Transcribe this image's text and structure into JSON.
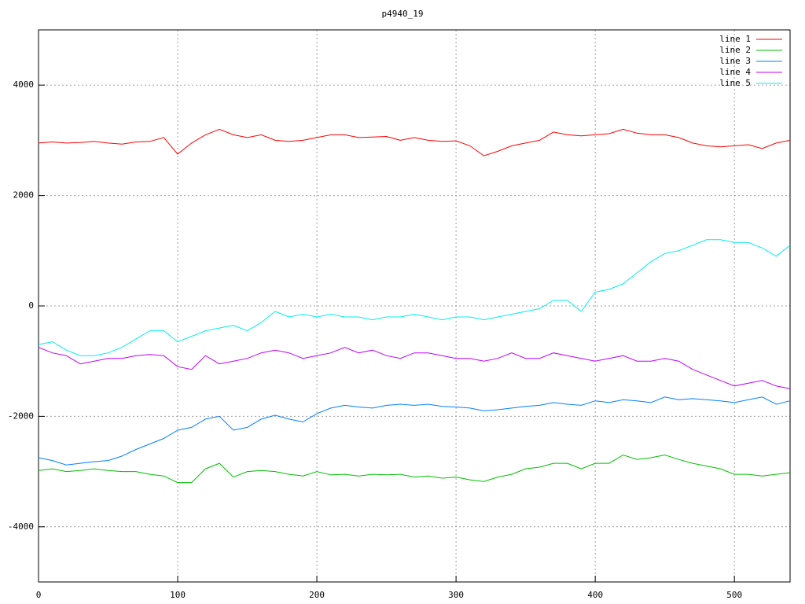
{
  "chart_data": {
    "type": "line",
    "title": "p4940_19",
    "x": [
      0,
      10,
      20,
      30,
      40,
      50,
      60,
      70,
      80,
      90,
      100,
      110,
      120,
      130,
      140,
      150,
      160,
      170,
      180,
      190,
      200,
      210,
      220,
      230,
      240,
      250,
      260,
      270,
      280,
      290,
      300,
      310,
      320,
      330,
      340,
      350,
      360,
      370,
      380,
      390,
      400,
      410,
      420,
      430,
      440,
      450,
      460,
      470,
      480,
      490,
      500,
      510,
      520,
      530,
      540
    ],
    "series": [
      {
        "name": "line 1",
        "color": "#ff0000",
        "values": [
          2950,
          2970,
          2950,
          2960,
          2980,
          2950,
          2930,
          2970,
          2980,
          3050,
          2750,
          2950,
          3100,
          3200,
          3100,
          3050,
          3100,
          3000,
          2980,
          3000,
          3050,
          3100,
          3100,
          3050,
          3060,
          3070,
          3000,
          3050,
          3000,
          2980,
          2990,
          2900,
          2720,
          2800,
          2900,
          2950,
          3000,
          3150,
          3100,
          3080,
          3100,
          3120,
          3200,
          3130,
          3100,
          3100,
          3050,
          2950,
          2900,
          2880,
          2900,
          2920,
          2850,
          2950,
          3000
        ]
      },
      {
        "name": "line 2",
        "color": "#00c000",
        "values": [
          -2980,
          -2950,
          -3000,
          -2980,
          -2950,
          -2980,
          -3000,
          -3000,
          -3050,
          -3080,
          -3200,
          -3200,
          -2950,
          -2850,
          -3100,
          -3000,
          -2980,
          -3000,
          -3050,
          -3080,
          -3000,
          -3060,
          -3050,
          -3080,
          -3050,
          -3060,
          -3050,
          -3100,
          -3080,
          -3120,
          -3100,
          -3150,
          -3180,
          -3100,
          -3050,
          -2950,
          -2920,
          -2850,
          -2850,
          -2950,
          -2850,
          -2850,
          -2700,
          -2780,
          -2750,
          -2700,
          -2780,
          -2850,
          -2900,
          -2950,
          -3050,
          -3050,
          -3080,
          -3050,
          -3020
        ]
      },
      {
        "name": "line 3",
        "color": "#0080ff",
        "values": [
          -2750,
          -2800,
          -2880,
          -2850,
          -2820,
          -2800,
          -2720,
          -2600,
          -2500,
          -2400,
          -2250,
          -2200,
          -2050,
          -2000,
          -2250,
          -2200,
          -2050,
          -1980,
          -2050,
          -2100,
          -1950,
          -1850,
          -1800,
          -1830,
          -1850,
          -1800,
          -1780,
          -1800,
          -1780,
          -1820,
          -1830,
          -1850,
          -1900,
          -1880,
          -1850,
          -1820,
          -1800,
          -1750,
          -1780,
          -1800,
          -1720,
          -1750,
          -1700,
          -1720,
          -1750,
          -1650,
          -1700,
          -1680,
          -1700,
          -1720,
          -1750,
          -1700,
          -1650,
          -1780,
          -1720
        ]
      },
      {
        "name": "line 4",
        "color": "#c000ff",
        "values": [
          -750,
          -850,
          -900,
          -1050,
          -1000,
          -950,
          -950,
          -900,
          -880,
          -900,
          -1100,
          -1150,
          -900,
          -1050,
          -1000,
          -950,
          -850,
          -800,
          -850,
          -950,
          -900,
          -850,
          -750,
          -850,
          -800,
          -900,
          -950,
          -850,
          -850,
          -900,
          -950,
          -950,
          -1000,
          -950,
          -850,
          -950,
          -950,
          -850,
          -900,
          -950,
          -1000,
          -950,
          -900,
          -1000,
          -1000,
          -950,
          -1000,
          -1150,
          -1250,
          -1350,
          -1450,
          -1400,
          -1350,
          -1450,
          -1500
        ]
      },
      {
        "name": "line 5",
        "color": "#00eeee",
        "values": [
          -700,
          -650,
          -800,
          -900,
          -900,
          -850,
          -750,
          -600,
          -450,
          -450,
          -650,
          -550,
          -450,
          -400,
          -350,
          -450,
          -300,
          -100,
          -200,
          -150,
          -200,
          -150,
          -200,
          -200,
          -250,
          -200,
          -200,
          -150,
          -200,
          -250,
          -200,
          -200,
          -250,
          -200,
          -150,
          -100,
          -50,
          100,
          100,
          -100,
          250,
          300,
          400,
          600,
          800,
          950,
          1000,
          1100,
          1200,
          1200,
          1150,
          1150,
          1050,
          900,
          1100
        ]
      }
    ],
    "xlim": [
      0,
      540
    ],
    "xticks": [
      0,
      100,
      200,
      300,
      400,
      500
    ],
    "ylim": [
      -5000,
      5000
    ],
    "yticks": [
      -4000,
      -2000,
      0,
      2000,
      4000
    ],
    "grid": true,
    "legend": "top-right"
  }
}
